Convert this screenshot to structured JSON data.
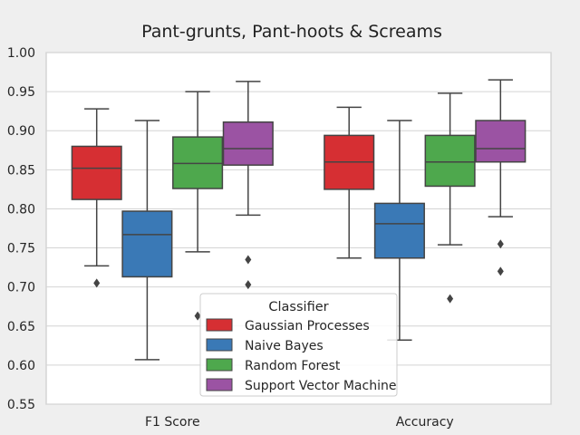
{
  "chart_data": {
    "type": "box",
    "title": "Pant-grunts, Pant-hoots & Screams",
    "xlabel": "",
    "ylabel": "",
    "ylim": [
      0.55,
      1.0
    ],
    "yticks": [
      "0.55",
      "0.60",
      "0.65",
      "0.70",
      "0.75",
      "0.80",
      "0.85",
      "0.90",
      "0.95",
      "1.00"
    ],
    "grid": true,
    "legend_position": "bottom-center",
    "categories": [
      "F1 Score",
      "Accuracy"
    ],
    "legend": {
      "title": "Classifier",
      "entries": [
        "Gaussian Processes",
        "Naive Bayes",
        "Random Forest",
        "Support Vector Machine"
      ]
    },
    "series": [
      {
        "name": "Gaussian Processes",
        "color": "#d62f33",
        "boxes": [
          {
            "whisker_low": 0.727,
            "q1": 0.812,
            "median": 0.852,
            "q3": 0.88,
            "whisker_high": 0.928,
            "outliers": [
              0.705
            ]
          },
          {
            "whisker_low": 0.737,
            "q1": 0.825,
            "median": 0.86,
            "q3": 0.894,
            "whisker_high": 0.93,
            "outliers": []
          }
        ]
      },
      {
        "name": "Naive Bayes",
        "color": "#3a79b6",
        "boxes": [
          {
            "whisker_low": 0.607,
            "q1": 0.713,
            "median": 0.767,
            "q3": 0.797,
            "whisker_high": 0.913,
            "outliers": []
          },
          {
            "whisker_low": 0.632,
            "q1": 0.737,
            "median": 0.781,
            "q3": 0.807,
            "whisker_high": 0.913,
            "outliers": []
          }
        ]
      },
      {
        "name": "Random Forest",
        "color": "#4ea84d",
        "boxes": [
          {
            "whisker_low": 0.745,
            "q1": 0.826,
            "median": 0.858,
            "q3": 0.892,
            "whisker_high": 0.95,
            "outliers": [
              0.663
            ]
          },
          {
            "whisker_low": 0.754,
            "q1": 0.829,
            "median": 0.86,
            "q3": 0.894,
            "whisker_high": 0.948,
            "outliers": [
              0.685
            ]
          }
        ]
      },
      {
        "name": "Support Vector Machine",
        "color": "#9b53a3",
        "boxes": [
          {
            "whisker_low": 0.792,
            "q1": 0.856,
            "median": 0.877,
            "q3": 0.911,
            "whisker_high": 0.963,
            "outliers": [
              0.735,
              0.703
            ]
          },
          {
            "whisker_low": 0.79,
            "q1": 0.86,
            "median": 0.877,
            "q3": 0.913,
            "whisker_high": 0.965,
            "outliers": [
              0.755,
              0.72
            ]
          }
        ]
      }
    ]
  }
}
